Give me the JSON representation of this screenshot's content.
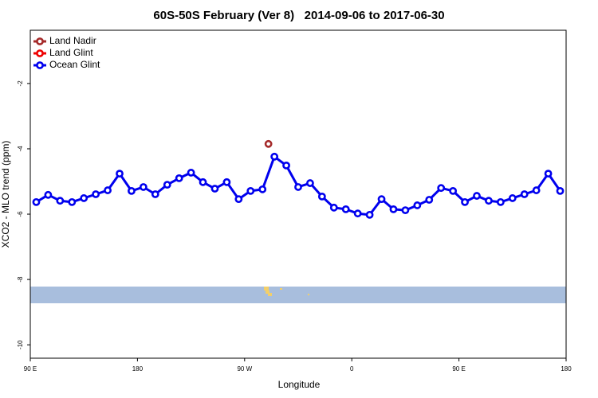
{
  "chart_data": {
    "type": "line",
    "title": "60S-50S February (Ver 8)   2014-09-06 to 2017-06-30",
    "xlabel": "Longitude",
    "ylabel": "XCO2 - MLO trend (ppm)",
    "xlim": [
      90,
      540
    ],
    "ylim": [
      -10.41,
      -0.37
    ],
    "xticks": [
      {
        "value": 90,
        "label": "90 E"
      },
      {
        "value": 180,
        "label": "180"
      },
      {
        "value": 270,
        "label": "90 W"
      },
      {
        "value": 360,
        "label": "0"
      },
      {
        "value": 450,
        "label": "90 E"
      },
      {
        "value": 540,
        "label": "180"
      }
    ],
    "yticks": [
      -2,
      -4,
      -6,
      -8,
      -10
    ],
    "legend": "top-left",
    "series": [
      {
        "name": "Land Nadir",
        "color": "#a52a2a",
        "x": [
          290
        ],
        "values": [
          -3.85
        ]
      },
      {
        "name": "Land Glint",
        "color": "#ee0000",
        "x": [],
        "values": []
      },
      {
        "name": "Ocean Glint",
        "color": "#0000ee",
        "x": [
          95,
          105,
          115,
          125,
          135,
          145,
          155,
          165,
          175,
          185,
          195,
          205,
          215,
          225,
          235,
          245,
          255,
          265,
          275,
          285,
          295,
          305,
          315,
          325,
          335,
          345,
          355,
          365,
          375,
          385,
          395,
          405,
          415,
          425,
          435,
          445,
          455,
          465,
          475,
          485,
          495,
          505,
          515,
          525,
          535
        ],
        "values": [
          -5.63,
          -5.41,
          -5.59,
          -5.63,
          -5.51,
          -5.39,
          -5.27,
          -4.76,
          -5.29,
          -5.17,
          -5.39,
          -5.1,
          -4.9,
          -4.73,
          -5.02,
          -5.22,
          -5.02,
          -5.54,
          -5.29,
          -5.24,
          -4.24,
          -4.51,
          -5.17,
          -5.05,
          -5.46,
          -5.8,
          -5.85,
          -5.98,
          -6.02,
          -5.54,
          -5.85,
          -5.88,
          -5.73,
          -5.56,
          -5.2,
          -5.29,
          -5.63,
          -5.44,
          -5.59,
          -5.63,
          -5.51,
          -5.39,
          -5.27,
          -4.76,
          -5.29
        ]
      }
    ]
  }
}
